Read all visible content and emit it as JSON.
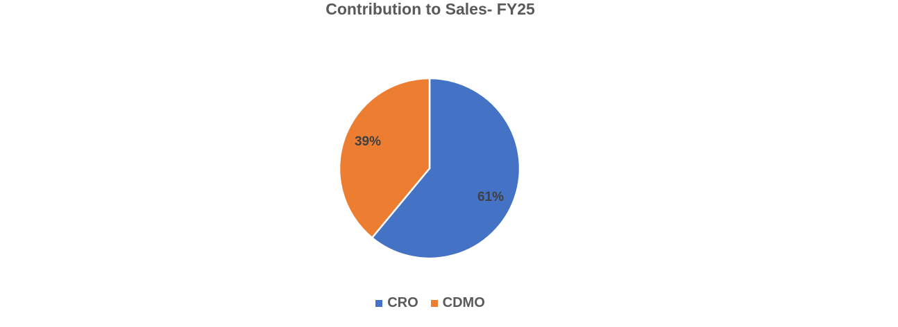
{
  "chart_data": {
    "type": "pie",
    "title": "Contribution to Sales- FY25",
    "categories": [
      "CRO",
      "CDMO"
    ],
    "values": [
      61,
      39
    ],
    "labels": [
      "61%",
      "39%"
    ],
    "colors": [
      "#4472C4",
      "#ED7D31"
    ],
    "legend_position": "bottom"
  },
  "legend": {
    "items": [
      {
        "label": "CRO",
        "color": "#4472C4"
      },
      {
        "label": "CDMO",
        "color": "#ED7D31"
      }
    ]
  }
}
